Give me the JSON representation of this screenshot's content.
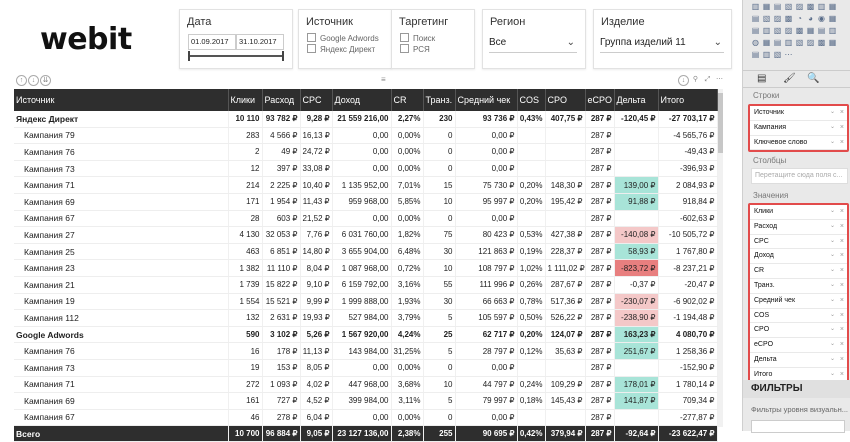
{
  "brand": {
    "logo": "webit"
  },
  "slicers": {
    "date": {
      "title": "Дата",
      "start": "01.09.2017",
      "end": "31.10.2017"
    },
    "source": {
      "title": "Источник",
      "options": [
        "Google Adwords",
        "Яндекс Директ"
      ]
    },
    "targeting": {
      "title": "Таргетинг",
      "options": [
        "Поиск",
        "РСЯ"
      ]
    },
    "region": {
      "title": "Регион",
      "value": "Все"
    },
    "product": {
      "title": "Изделие",
      "value": "Группа изделий 11"
    }
  },
  "table": {
    "columns": [
      "Источник",
      "Клики",
      "Расход",
      "CPC",
      "Доход",
      "CR",
      "Транз.",
      "Средний чек",
      "COS",
      "CPO",
      "eCPO",
      "Дельта",
      "Итого"
    ],
    "rows": [
      {
        "type": "grp",
        "cells": [
          "Яндекс Директ",
          "10 110",
          "93 782 ₽",
          "9,28 ₽",
          "21 559 216,00",
          "2,27%",
          "230",
          "93 736 ₽",
          "0,43%",
          "407,75 ₽",
          "287 ₽",
          "-120,45 ₽",
          "-27 703,17 ₽"
        ],
        "delta": "none"
      },
      {
        "type": "sub",
        "cells": [
          "Кампания 79",
          "283",
          "4 566 ₽",
          "16,13 ₽",
          "0,00",
          "0,00%",
          "0",
          "0,00 ₽",
          "",
          "",
          "287 ₽",
          "",
          "-4 565,76 ₽"
        ],
        "delta": "none"
      },
      {
        "type": "sub",
        "cells": [
          "Кампания 76",
          "2",
          "49 ₽",
          "24,72 ₽",
          "0,00",
          "0,00%",
          "0",
          "0,00 ₽",
          "",
          "",
          "287 ₽",
          "",
          "-49,43 ₽"
        ],
        "delta": "none"
      },
      {
        "type": "sub",
        "cells": [
          "Кампания 73",
          "12",
          "397 ₽",
          "33,08 ₽",
          "0,00",
          "0,00%",
          "0",
          "0,00 ₽",
          "",
          "",
          "287 ₽",
          "",
          "-396,93 ₽"
        ],
        "delta": "none"
      },
      {
        "type": "sub",
        "cells": [
          "Кампания 71",
          "214",
          "2 225 ₽",
          "10,40 ₽",
          "1 135 952,00",
          "7,01%",
          "15",
          "75 730 ₽",
          "0,20%",
          "148,30 ₽",
          "287 ₽",
          "139,00 ₽",
          "2 084,93 ₽"
        ],
        "delta": "pos"
      },
      {
        "type": "sub",
        "cells": [
          "Кампания 69",
          "171",
          "1 954 ₽",
          "11,43 ₽",
          "959 968,00",
          "5,85%",
          "10",
          "95 997 ₽",
          "0,20%",
          "195,42 ₽",
          "287 ₽",
          "91,88 ₽",
          "918,84 ₽"
        ],
        "delta": "pos"
      },
      {
        "type": "sub",
        "cells": [
          "Кампания 67",
          "28",
          "603 ₽",
          "21,52 ₽",
          "0,00",
          "0,00%",
          "0",
          "0,00 ₽",
          "",
          "",
          "287 ₽",
          "",
          "-602,63 ₽"
        ],
        "delta": "none"
      },
      {
        "type": "sub",
        "cells": [
          "Кампания 27",
          "4 130",
          "32 053 ₽",
          "7,76 ₽",
          "6 031 760,00",
          "1,82%",
          "75",
          "80 423 ₽",
          "0,53%",
          "427,38 ₽",
          "287 ₽",
          "-140,08 ₽",
          "-10 505,72 ₽"
        ],
        "delta": "neg"
      },
      {
        "type": "sub",
        "cells": [
          "Кампания 25",
          "463",
          "6 851 ₽",
          "14,80 ₽",
          "3 655 904,00",
          "6,48%",
          "30",
          "121 863 ₽",
          "0,19%",
          "228,37 ₽",
          "287 ₽",
          "58,93 ₽",
          "1 767,80 ₽"
        ],
        "delta": "pos"
      },
      {
        "type": "sub",
        "cells": [
          "Кампания 23",
          "1 382",
          "11 110 ₽",
          "8,04 ₽",
          "1 087 968,00",
          "0,72%",
          "10",
          "108 797 ₽",
          "1,02%",
          "1 111,02 ₽",
          "287 ₽",
          "-823,72 ₽",
          "-8 237,21 ₽"
        ],
        "delta": "neg2"
      },
      {
        "type": "sub",
        "cells": [
          "Кампания 21",
          "1 739",
          "15 822 ₽",
          "9,10 ₽",
          "6 159 792,00",
          "3,16%",
          "55",
          "111 996 ₽",
          "0,26%",
          "287,67 ₽",
          "287 ₽",
          "-0,37 ₽",
          "-20,47 ₽"
        ],
        "delta": "none"
      },
      {
        "type": "sub",
        "cells": [
          "Кампания 19",
          "1 554",
          "15 521 ₽",
          "9,99 ₽",
          "1 999 888,00",
          "1,93%",
          "30",
          "66 663 ₽",
          "0,78%",
          "517,36 ₽",
          "287 ₽",
          "-230,07 ₽",
          "-6 902,02 ₽"
        ],
        "delta": "neg"
      },
      {
        "type": "sub",
        "cells": [
          "Кампания 112",
          "132",
          "2 631 ₽",
          "19,93 ₽",
          "527 984,00",
          "3,79%",
          "5",
          "105 597 ₽",
          "0,50%",
          "526,22 ₽",
          "287 ₽",
          "-238,90 ₽",
          "-1 194,48 ₽"
        ],
        "delta": "neg"
      },
      {
        "type": "grp",
        "cells": [
          "Google Adwords",
          "590",
          "3 102 ₽",
          "5,26 ₽",
          "1 567 920,00",
          "4,24%",
          "25",
          "62 717 ₽",
          "0,20%",
          "124,07 ₽",
          "287 ₽",
          "163,23 ₽",
          "4 080,70 ₽"
        ],
        "delta": "pos"
      },
      {
        "type": "sub",
        "cells": [
          "Кампания 76",
          "16",
          "178 ₽",
          "11,13 ₽",
          "143 984,00",
          "31,25%",
          "5",
          "28 797 ₽",
          "0,12%",
          "35,63 ₽",
          "287 ₽",
          "251,67 ₽",
          "1 258,36 ₽"
        ],
        "delta": "pos"
      },
      {
        "type": "sub",
        "cells": [
          "Кампания 73",
          "19",
          "153 ₽",
          "8,05 ₽",
          "0,00",
          "0,00%",
          "0",
          "0,00 ₽",
          "",
          "",
          "287 ₽",
          "",
          "-152,90 ₽"
        ],
        "delta": "none"
      },
      {
        "type": "sub",
        "cells": [
          "Кампания 71",
          "272",
          "1 093 ₽",
          "4,02 ₽",
          "447 968,00",
          "3,68%",
          "10",
          "44 797 ₽",
          "0,24%",
          "109,29 ₽",
          "287 ₽",
          "178,01 ₽",
          "1 780,14 ₽"
        ],
        "delta": "pos"
      },
      {
        "type": "sub",
        "cells": [
          "Кампания 69",
          "161",
          "727 ₽",
          "4,52 ₽",
          "399 984,00",
          "3,11%",
          "5",
          "79 997 ₽",
          "0,18%",
          "145,43 ₽",
          "287 ₽",
          "141,87 ₽",
          "709,34 ₽"
        ],
        "delta": "pos"
      },
      {
        "type": "sub",
        "cells": [
          "Кампания 67",
          "46",
          "278 ₽",
          "6,04 ₽",
          "0,00",
          "0,00%",
          "0",
          "0,00 ₽",
          "",
          "",
          "287 ₽",
          "",
          "-277,87 ₽"
        ],
        "delta": "none"
      }
    ],
    "total": [
      "Всего",
      "10 700",
      "96 884 ₽",
      "9,05 ₽",
      "23 127 136,00",
      "2,38%",
      "255",
      "90 695 ₽",
      "0,42%",
      "379,94 ₽",
      "287 ₽",
      "-92,64 ₽",
      "-23 622,47 ₽"
    ]
  },
  "fields_pane": {
    "rows_label": "Строки",
    "rows": [
      "Источник",
      "Кампания",
      "Ключевое слово"
    ],
    "columns_label": "Столбцы",
    "columns_placeholder": "Перетащите сюда поля с...",
    "values_label": "Значения",
    "values": [
      "Клики",
      "Расход",
      "CPC",
      "Доход",
      "CR",
      "Транз.",
      "Средний чек",
      "COS",
      "CPO",
      "eCPO",
      "Дельта",
      "Итого"
    ],
    "filters_title": "ФИЛЬТРЫ",
    "filters_sub": "Фильтры уровня визуальн..."
  },
  "colors": {
    "header_bg": "#2e2e2e",
    "positive": "#a8e4d8",
    "negative": "#f4c8c8",
    "negative_strong": "#e87f7f",
    "highlight": "#e24b4b"
  }
}
